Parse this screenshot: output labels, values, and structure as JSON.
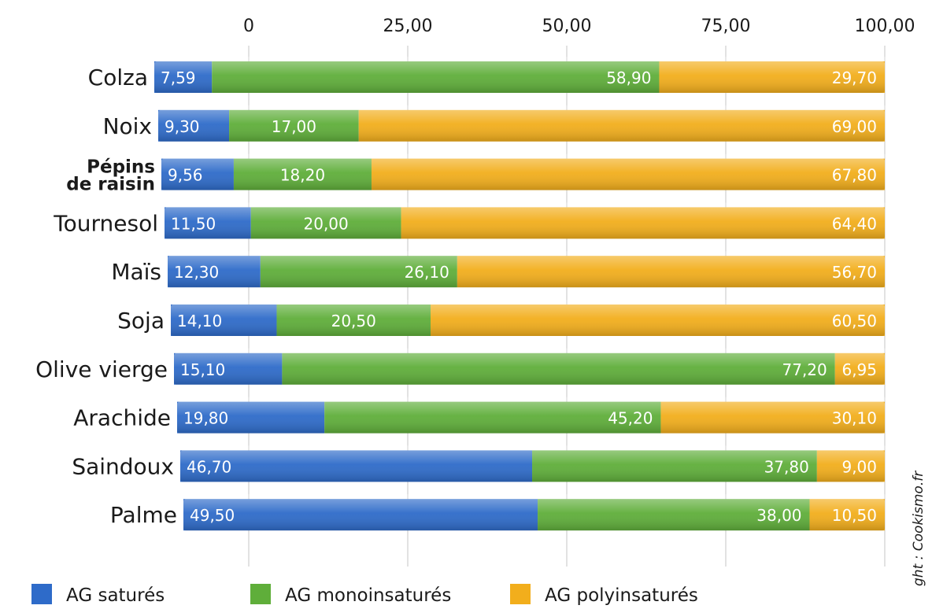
{
  "chart_data": {
    "type": "bar",
    "orientation": "horizontal",
    "stacked": true,
    "title": "",
    "xlabel": "",
    "ylabel": "",
    "xlim": [
      0,
      100
    ],
    "x_ticks": [
      "0",
      "25,00",
      "50,00",
      "75,00",
      "100,00"
    ],
    "x_tick_values": [
      0,
      25,
      50,
      75,
      100
    ],
    "grid": true,
    "legend_position": "bottom",
    "categories": [
      "Colza",
      "Noix",
      "Pépins de raisin",
      "Tournesol",
      "Maïs",
      "Soja",
      "Olive vierge",
      "Arachide",
      "Saindoux",
      "Palme"
    ],
    "series": [
      {
        "name": "AG saturés",
        "color": "#2e6bc9",
        "values": [
          7.59,
          9.3,
          9.56,
          11.5,
          12.3,
          14.1,
          15.1,
          19.8,
          46.7,
          49.5
        ],
        "labels": [
          "7,59",
          "9,30",
          "9,56",
          "11,50",
          "12,30",
          "14,10",
          "15,10",
          "19,80",
          "46,70",
          "49,50"
        ]
      },
      {
        "name": "AG monoinsaturés",
        "color": "#5fae3a",
        "values": [
          58.9,
          17.0,
          18.2,
          20.0,
          26.1,
          20.5,
          77.2,
          45.2,
          37.8,
          38.0
        ],
        "labels": [
          "58,90",
          "17,00",
          "18,20",
          "20,00",
          "26,10",
          "20,50",
          "77,20",
          "45,20",
          "37,80",
          "38,00"
        ]
      },
      {
        "name": "AG polyinsaturés",
        "color": "#f2ae1c",
        "values": [
          29.7,
          69.0,
          67.8,
          64.4,
          56.7,
          60.5,
          6.95,
          30.1,
          9.0,
          10.5
        ],
        "labels": [
          "29,70",
          "69,00",
          "67,80",
          "64,40",
          "56,70",
          "60,50",
          "6,95",
          "30,10",
          "9,00",
          "10,50"
        ]
      }
    ]
  },
  "credit": "ght : Cookismo.fr"
}
